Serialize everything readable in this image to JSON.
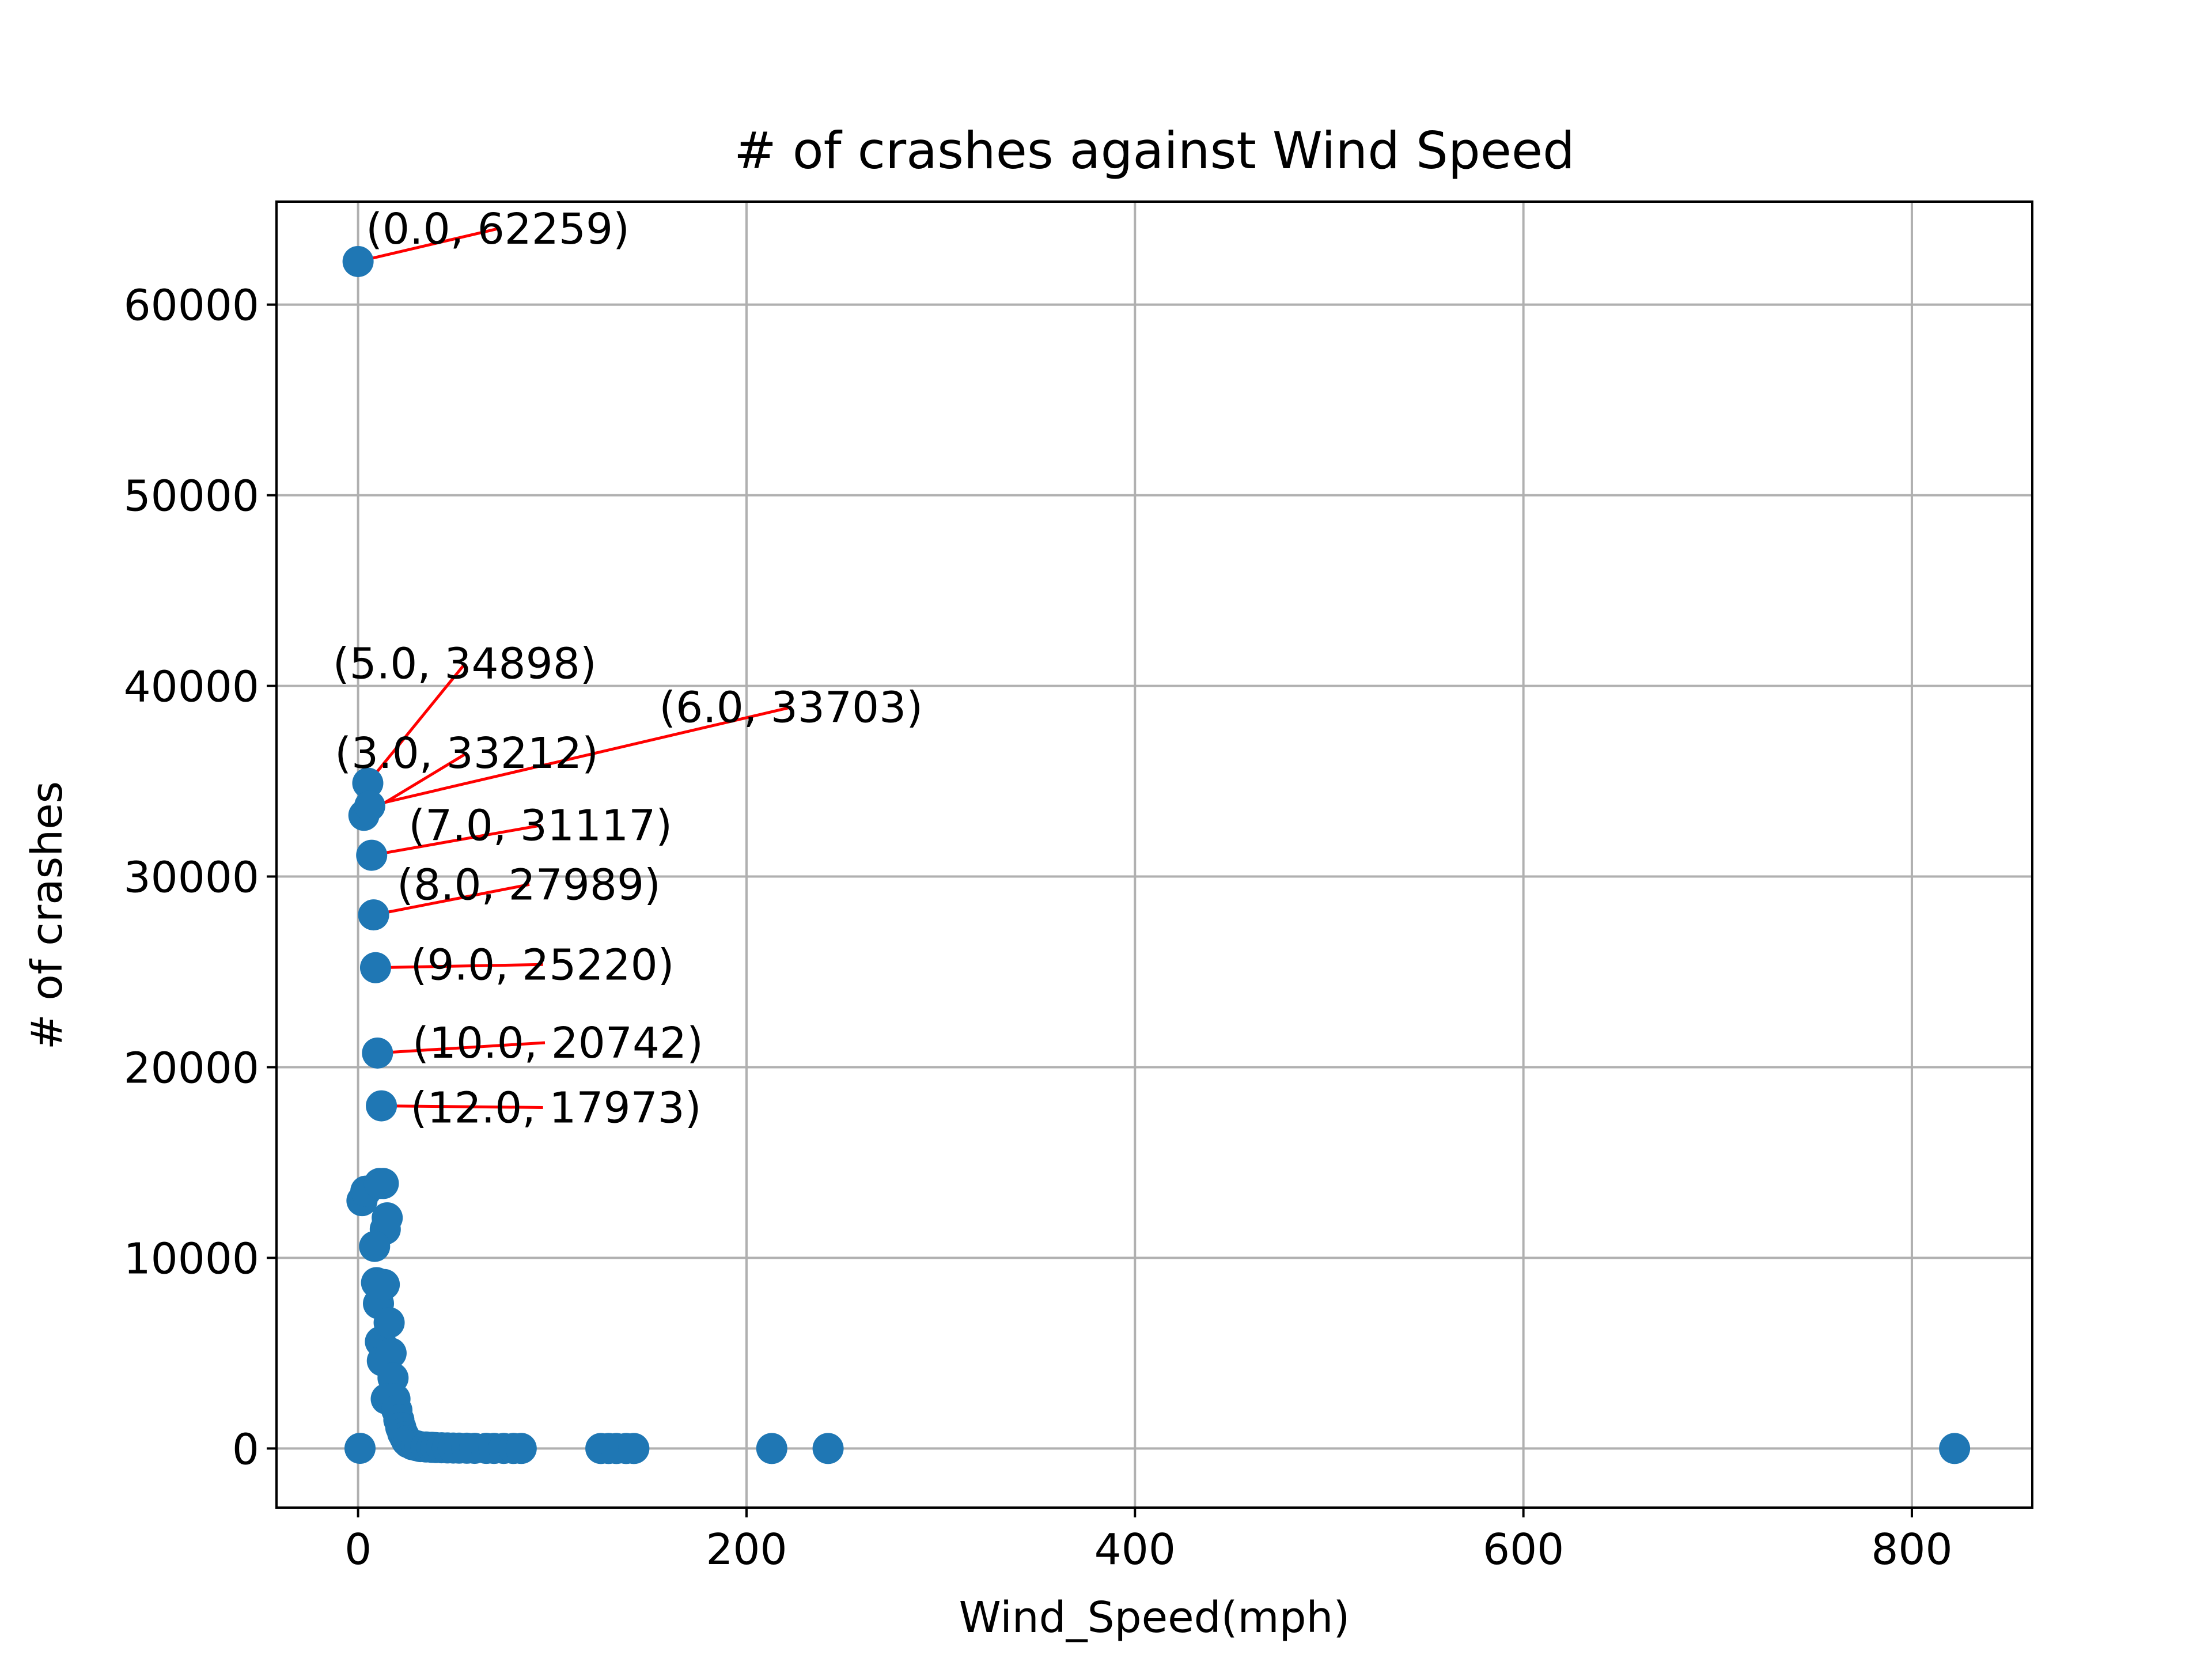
{
  "chart_data": {
    "type": "scatter",
    "title": "# of crashes against Wind Speed",
    "xlabel": "Wind_Speed(mph)",
    "ylabel": "# of crashes",
    "xlim": [
      -42,
      862
    ],
    "ylim": [
      -3100,
      65400
    ],
    "xticks": [
      0,
      200,
      400,
      600,
      800
    ],
    "yticks": [
      0,
      10000,
      20000,
      30000,
      40000,
      50000,
      60000
    ],
    "grid": true,
    "colors": {
      "points": "#1f77b4",
      "annotation_line": "#ff0000",
      "grid": "#b0b0b0"
    },
    "points": [
      {
        "x": 0,
        "y": 62259
      },
      {
        "x": 1,
        "y": 10
      },
      {
        "x": 2,
        "y": 13000
      },
      {
        "x": 3,
        "y": 33212
      },
      {
        "x": 4,
        "y": 13500
      },
      {
        "x": 5,
        "y": 34898
      },
      {
        "x": 6,
        "y": 33703
      },
      {
        "x": 7,
        "y": 31117
      },
      {
        "x": 8,
        "y": 27989
      },
      {
        "x": 9,
        "y": 25220
      },
      {
        "x": 10,
        "y": 20742
      },
      {
        "x": 11,
        "y": 13900
      },
      {
        "x": 12,
        "y": 17973
      },
      {
        "x": 13,
        "y": 13900
      },
      {
        "x": 14,
        "y": 11500
      },
      {
        "x": 15,
        "y": 12100
      },
      {
        "x": 8.5,
        "y": 10600
      },
      {
        "x": 9.5,
        "y": 8700
      },
      {
        "x": 10.5,
        "y": 7600
      },
      {
        "x": 11.5,
        "y": 5600
      },
      {
        "x": 12.5,
        "y": 4600
      },
      {
        "x": 13.5,
        "y": 8600
      },
      {
        "x": 16,
        "y": 6600
      },
      {
        "x": 17,
        "y": 5000
      },
      {
        "x": 18,
        "y": 3700
      },
      {
        "x": 14.5,
        "y": 2600
      },
      {
        "x": 19,
        "y": 2600
      },
      {
        "x": 20,
        "y": 2000
      },
      {
        "x": 21,
        "y": 1500
      },
      {
        "x": 22,
        "y": 1100
      },
      {
        "x": 23,
        "y": 800
      },
      {
        "x": 24,
        "y": 600
      },
      {
        "x": 25,
        "y": 400
      },
      {
        "x": 26,
        "y": 300
      },
      {
        "x": 28,
        "y": 200
      },
      {
        "x": 30,
        "y": 150
      },
      {
        "x": 32,
        "y": 100
      },
      {
        "x": 35,
        "y": 80
      },
      {
        "x": 38,
        "y": 60
      },
      {
        "x": 40,
        "y": 50
      },
      {
        "x": 43,
        "y": 40
      },
      {
        "x": 46,
        "y": 30
      },
      {
        "x": 49,
        "y": 25
      },
      {
        "x": 52,
        "y": 20
      },
      {
        "x": 56,
        "y": 15
      },
      {
        "x": 60,
        "y": 10
      },
      {
        "x": 66,
        "y": 8
      },
      {
        "x": 70,
        "y": 6
      },
      {
        "x": 75,
        "y": 5
      },
      {
        "x": 80,
        "y": 4
      },
      {
        "x": 84,
        "y": 3
      },
      {
        "x": 125,
        "y": 2
      },
      {
        "x": 129,
        "y": 2
      },
      {
        "x": 133,
        "y": 1
      },
      {
        "x": 138,
        "y": 1
      },
      {
        "x": 142,
        "y": 1
      },
      {
        "x": 213,
        "y": 1
      },
      {
        "x": 242,
        "y": 1
      },
      {
        "x": 822,
        "y": 1
      }
    ],
    "annotations": [
      {
        "text": "(0.0, 62259)",
        "x": 0,
        "y": 62259,
        "tx": 4,
        "ty": 63200
      },
      {
        "text": "(5.0, 34898)",
        "x": 5,
        "y": 34898,
        "tx": -13,
        "ty": 40400
      },
      {
        "text": "(6.0, 33703)",
        "x": 6,
        "y": 33703,
        "tx": 155,
        "ty": 38100
      },
      {
        "text": "(3.0, 33212)",
        "x": 3,
        "y": 33212,
        "tx": -12,
        "ty": 35700
      },
      {
        "text": "(7.0, 31117)",
        "x": 7,
        "y": 31117,
        "tx": 26,
        "ty": 31900
      },
      {
        "text": "(8.0, 27989)",
        "x": 8,
        "y": 27989,
        "tx": 20,
        "ty": 28800
      },
      {
        "text": "(9.0, 25220)",
        "x": 9,
        "y": 25220,
        "tx": 27,
        "ty": 24600
      },
      {
        "text": "(10.0, 20742)",
        "x": 10,
        "y": 20742,
        "tx": 28,
        "ty": 20500
      },
      {
        "text": "(12.0, 17973)",
        "x": 12,
        "y": 17973,
        "tx": 27,
        "ty": 17100
      }
    ]
  }
}
